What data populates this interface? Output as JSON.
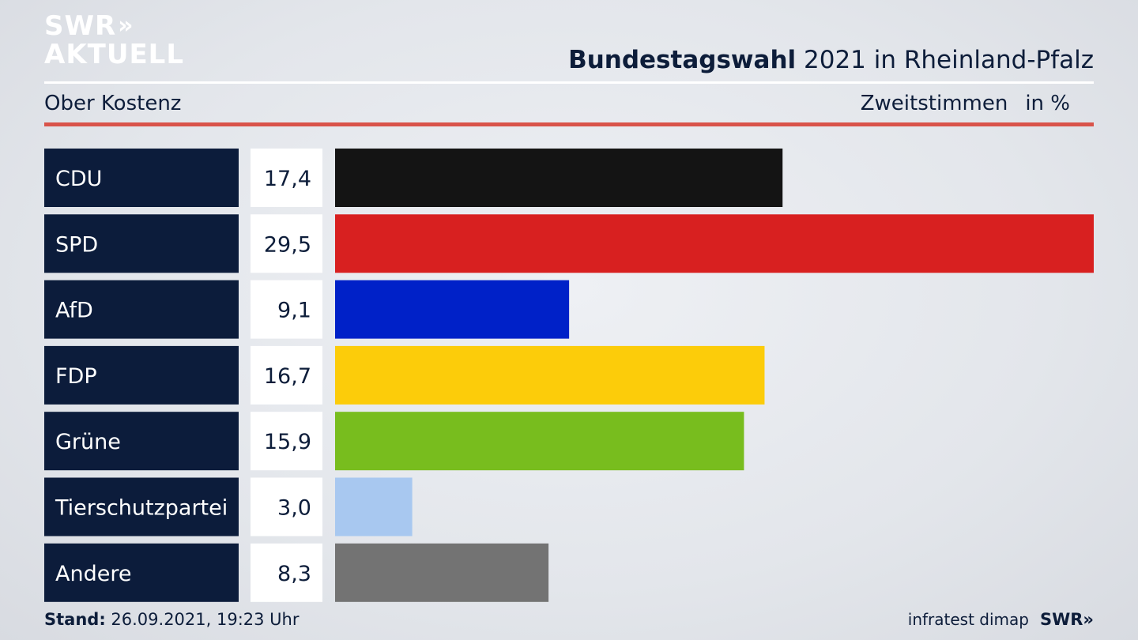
{
  "logo": {
    "line1": "SWR",
    "chevrons": "»",
    "line2": "AKTUELL"
  },
  "header": {
    "title_bold": "Bundestagswahl",
    "title_rest": " 2021 in Rheinland-Pfalz",
    "location": "Ober Kostenz",
    "metric": "Zweitstimmen",
    "unit": "in %"
  },
  "footer": {
    "stand_label": "Stand:",
    "stand_value": " 26.09.2021, 19:23 Uhr",
    "source": "infratest dimap",
    "brand": "SWR»"
  },
  "colors": {
    "label_bg": "#0c1c3b",
    "value_bg": "#ffffff",
    "accent_red": "#d9534a"
  },
  "chart_data": {
    "type": "bar",
    "orientation": "horizontal",
    "categories": [
      "CDU",
      "SPD",
      "AfD",
      "FDP",
      "Grüne",
      "Tierschutzpartei",
      "Andere"
    ],
    "values": [
      17.4,
      29.5,
      9.1,
      16.7,
      15.9,
      3.0,
      8.3
    ],
    "value_labels": [
      "17,4",
      "29,5",
      "9,1",
      "16,7",
      "15,9",
      "3,0",
      "8,3"
    ],
    "colors": [
      "#141414",
      "#d82020",
      "#0021c8",
      "#fccc0a",
      "#78bd1e",
      "#a8c8f0",
      "#737373"
    ],
    "xlim": [
      0,
      29.5
    ],
    "grid": false,
    "legend": "none"
  }
}
